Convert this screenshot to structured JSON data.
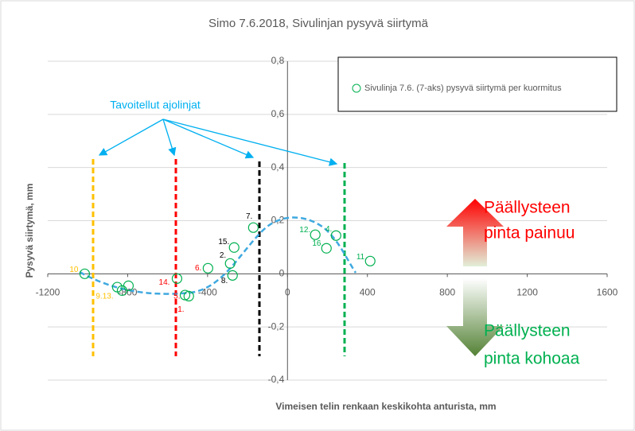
{
  "chart_data": {
    "type": "scatter",
    "title": "Simo 7.6.2018, Sivulinjan pysyvä siirtymä",
    "xlabel": "Vimeisen telin renkaan keskikohta anturista, mm",
    "ylabel": "Pysyvä siirtymä, mm",
    "xlim": [
      -1200,
      1600
    ],
    "xticks": [
      -1200,
      -800,
      -400,
      0,
      400,
      800,
      1200,
      1600
    ],
    "ylim": [
      -0.4,
      0.8
    ],
    "yticks": [
      {
        "value": -0.4,
        "label": "-0,4"
      },
      {
        "value": -0.2,
        "label": "-0,2"
      },
      0,
      {
        "value": 0.2,
        "label": "0,2"
      },
      {
        "value": 0.4,
        "label": "0,4"
      },
      {
        "value": 0.6,
        "label": "0,6"
      },
      {
        "value": 0.8,
        "label": "0,8"
      }
    ],
    "grid": true,
    "series": [
      {
        "name": "Sivulinja 7.6. (7-aks) pysyvä siirtymä per kuormitus",
        "color": "#00b050",
        "x": [
          -1015,
          -852,
          -828,
          -796,
          -553,
          -513,
          -494,
          -398,
          -275,
          -287,
          -267,
          -171,
          139,
          243,
          195,
          414
        ],
        "values": [
          0.0,
          -0.05,
          -0.063,
          -0.045,
          -0.018,
          -0.08,
          -0.084,
          0.021,
          -0.006,
          0.039,
          0.099,
          0.174,
          0.147,
          0.144,
          0.096,
          0.048
        ],
        "point_labels": [
          "10",
          "9.13.",
          null,
          null,
          "14.",
          "5.",
          "1.",
          "6.",
          "8.",
          "2.",
          "15.",
          "7.",
          "12.",
          "4.",
          "16.",
          "11"
        ],
        "point_label_colors": [
          "#ffc000",
          "#ffc000",
          null,
          null,
          "#ff0000",
          "#ff0000",
          "#ff0000",
          "#ff0000",
          "#000000",
          "#000000",
          "#000000",
          "#000000",
          "#00b050",
          "#00b050",
          "#00b050",
          "#00b050"
        ]
      }
    ],
    "annotations": [
      "Tavoitellut ajolinjat",
      "Päällysteen",
      "pinta painuu",
      "Päällysteen",
      "pinta kohoaa"
    ]
  }
}
